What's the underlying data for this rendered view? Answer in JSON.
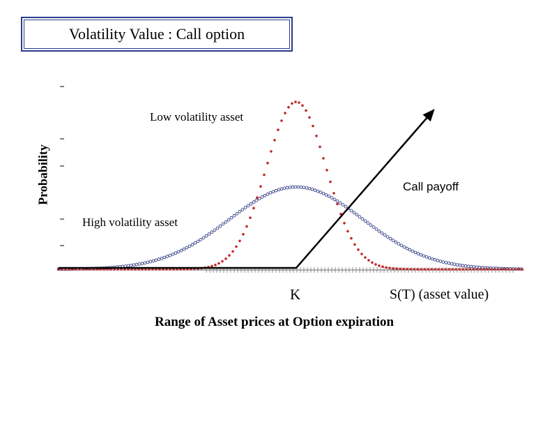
{
  "title": "Volatility Value :  Call option",
  "y_axis_label": "Probability",
  "x_axis_label": "Range of Asset prices at Option expiration",
  "labels": {
    "low_vol": "Low volatility asset",
    "high_vol": "High volatility asset",
    "call_payoff": "Call payoff",
    "strike": "K",
    "asset_value": "S(T)  (asset value)"
  },
  "colors": {
    "low_vol_curve": "#c0282a",
    "high_vol_curve": "#1f2a7a",
    "payoff_line": "#000000",
    "title_border": "#2a3a8c"
  },
  "chart_data": {
    "type": "line",
    "series": [
      {
        "name": "Low volatility asset",
        "peak": 1.0,
        "center": "K",
        "relative_spread": "narrow"
      },
      {
        "name": "High volatility asset",
        "peak": 0.5,
        "center": "K",
        "relative_spread": "wide"
      },
      {
        "name": "Call payoff",
        "shape": "flat until K, then rising linearly"
      }
    ]
  }
}
